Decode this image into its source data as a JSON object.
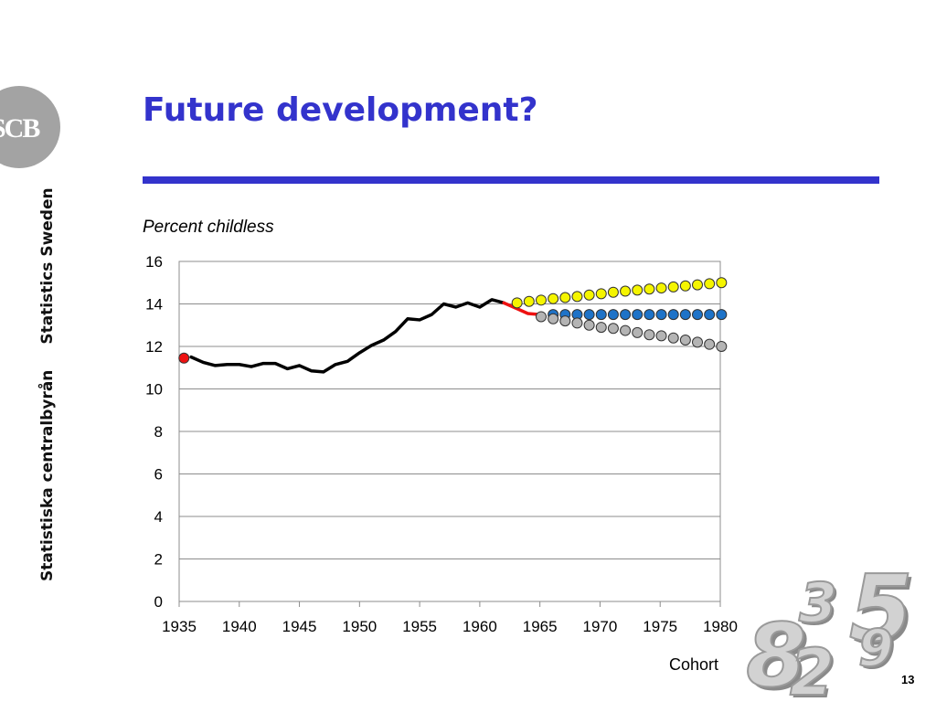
{
  "branding": {
    "logo_text": "SCB",
    "name_sv": "Statistiska centralbyrån",
    "name_en": "Statistics Sweden",
    "decorative_digits": [
      "8",
      "3",
      "5",
      "2",
      "9"
    ]
  },
  "slide": {
    "title": "Future development?",
    "page_number": "13",
    "title_color": "#3333cc"
  },
  "chart_data": {
    "type": "line",
    "title": "Percent childless",
    "xlabel": "Cohort",
    "ylabel": "",
    "xlim": [
      1935,
      1980
    ],
    "ylim": [
      0,
      16
    ],
    "x_ticks": [
      1935,
      1940,
      1945,
      1950,
      1955,
      1960,
      1965,
      1970,
      1975,
      1980
    ],
    "y_ticks": [
      0,
      2,
      4,
      6,
      8,
      10,
      12,
      14,
      16
    ],
    "grid": "horizontal",
    "series": [
      {
        "style": "line",
        "color": "#000000",
        "x": [
          1936,
          1937,
          1938,
          1939,
          1940,
          1941,
          1942,
          1943,
          1944,
          1945,
          1946,
          1947,
          1948,
          1949,
          1950,
          1951,
          1952,
          1953,
          1954,
          1955,
          1956,
          1957,
          1958,
          1959,
          1960,
          1961,
          1962
        ],
        "y": [
          11.5,
          11.25,
          11.1,
          11.15,
          11.15,
          11.05,
          11.2,
          11.2,
          10.95,
          11.1,
          10.85,
          10.8,
          11.15,
          11.3,
          11.7,
          12.05,
          12.3,
          12.7,
          13.3,
          13.25,
          13.5,
          14.0,
          13.85,
          14.05,
          13.85,
          14.2,
          14.05
        ]
      },
      {
        "style": "line",
        "color": "#ee1111",
        "x": [
          1962,
          1963,
          1964,
          1965
        ],
        "y": [
          14.05,
          13.8,
          13.55,
          13.5
        ]
      },
      {
        "style": "markers",
        "color": "#ee1111",
        "x": [
          1935.4
        ],
        "y": [
          11.45
        ]
      },
      {
        "style": "markers",
        "color": "#f5f500",
        "x": [
          1963.1,
          1964.1,
          1965.1,
          1966.1,
          1967.1,
          1968.1,
          1969.1,
          1970.1,
          1971.1,
          1972.1,
          1973.1,
          1974.1,
          1975.1,
          1976.1,
          1977.1,
          1978.1,
          1979.1,
          1980.1
        ],
        "y": [
          14.05,
          14.12,
          14.18,
          14.25,
          14.3,
          14.35,
          14.42,
          14.48,
          14.55,
          14.6,
          14.65,
          14.7,
          14.75,
          14.8,
          14.85,
          14.9,
          14.95,
          15.0
        ]
      },
      {
        "style": "markers",
        "color": "#1e73c8",
        "x": [
          1966.1,
          1967.1,
          1968.1,
          1969.1,
          1970.1,
          1971.1,
          1972.1,
          1973.1,
          1974.1,
          1975.1,
          1976.1,
          1977.1,
          1978.1,
          1979.1,
          1980.1
        ],
        "y": [
          13.5,
          13.5,
          13.5,
          13.5,
          13.5,
          13.5,
          13.5,
          13.5,
          13.5,
          13.5,
          13.5,
          13.5,
          13.5,
          13.5,
          13.5
        ]
      },
      {
        "style": "markers",
        "color": "#b4b4b4",
        "x": [
          1965.1,
          1966.1,
          1967.1,
          1968.1,
          1969.1,
          1970.1,
          1971.1,
          1972.1,
          1973.1,
          1974.1,
          1975.1,
          1976.1,
          1977.1,
          1978.1,
          1979.1,
          1980.1
        ],
        "y": [
          13.4,
          13.3,
          13.2,
          13.1,
          13.0,
          12.9,
          12.85,
          12.75,
          12.65,
          12.55,
          12.5,
          12.4,
          12.3,
          12.2,
          12.1,
          12.0
        ]
      }
    ]
  }
}
